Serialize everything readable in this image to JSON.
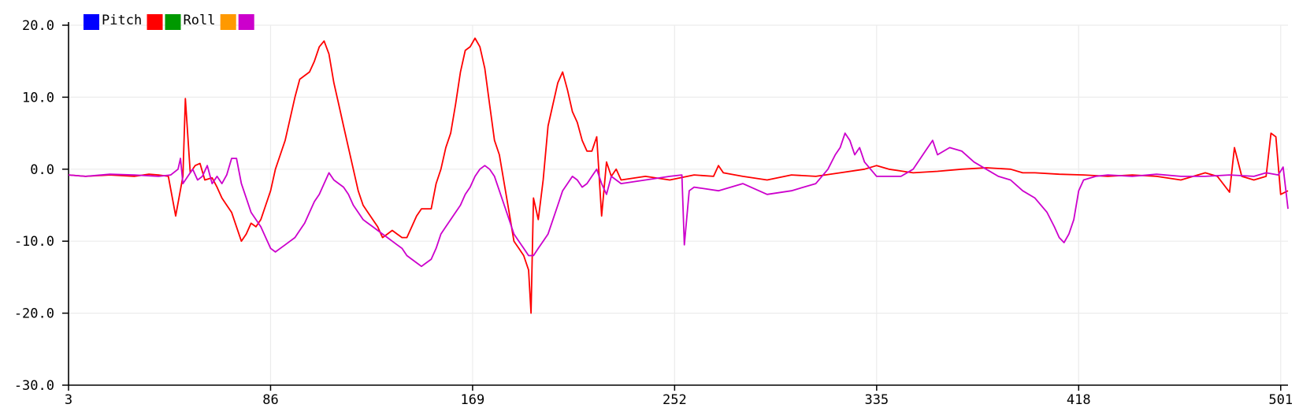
{
  "chart_data": {
    "type": "line",
    "title": "",
    "xlabel": "",
    "ylabel": "",
    "xlim": [
      3,
      504
    ],
    "ylim": [
      -30,
      20
    ],
    "grid": true,
    "legend_position": "top-left",
    "x_ticks": [
      3,
      86,
      169,
      252,
      335,
      418,
      501
    ],
    "x_tick_labels": [
      "3",
      "86",
      "169",
      "252",
      "335",
      "418",
      "501"
    ],
    "y_ticks": [
      20,
      10,
      0,
      -10,
      -20,
      -30
    ],
    "y_tick_labels": [
      "20.0",
      "10.0",
      "0.0",
      "-10.0",
      "-20.0",
      "-30.0"
    ],
    "legend": [
      {
        "color": "#0000ff",
        "label": "Pitch"
      },
      {
        "color": "#ff0000",
        "label": ""
      },
      {
        "color": "#009900",
        "label": "Roll"
      },
      {
        "color": "#ff9900",
        "label": ""
      },
      {
        "color": "#cc00cc",
        "label": ""
      }
    ],
    "series": [
      {
        "color": "#ff0000",
        "points": [
          [
            3,
            -0.8
          ],
          [
            10,
            -1
          ],
          [
            20,
            -0.8
          ],
          [
            30,
            -1
          ],
          [
            36,
            -0.7
          ],
          [
            40,
            -0.8
          ],
          [
            44,
            -1
          ],
          [
            47,
            -6.5
          ],
          [
            50,
            -1
          ],
          [
            51,
            9.8
          ],
          [
            53,
            -0.5
          ],
          [
            55,
            0.5
          ],
          [
            57,
            0.8
          ],
          [
            59,
            -1.5
          ],
          [
            62,
            -1.2
          ],
          [
            64,
            -2.5
          ],
          [
            66,
            -4
          ],
          [
            68,
            -5
          ],
          [
            70,
            -6
          ],
          [
            72,
            -8
          ],
          [
            74,
            -10
          ],
          [
            76,
            -9
          ],
          [
            78,
            -7.5
          ],
          [
            80,
            -8
          ],
          [
            82,
            -7
          ],
          [
            84,
            -5
          ],
          [
            86,
            -3
          ],
          [
            88,
            0
          ],
          [
            90,
            2
          ],
          [
            92,
            4
          ],
          [
            94,
            7
          ],
          [
            96,
            10
          ],
          [
            98,
            12.5
          ],
          [
            100,
            13
          ],
          [
            102,
            13.5
          ],
          [
            104,
            15
          ],
          [
            106,
            17
          ],
          [
            108,
            17.8
          ],
          [
            110,
            16
          ],
          [
            112,
            12
          ],
          [
            114,
            9
          ],
          [
            116,
            6
          ],
          [
            118,
            3
          ],
          [
            120,
            0
          ],
          [
            122,
            -3
          ],
          [
            124,
            -5
          ],
          [
            126,
            -6
          ],
          [
            128,
            -7
          ],
          [
            130,
            -8
          ],
          [
            132,
            -9.5
          ],
          [
            134,
            -9
          ],
          [
            136,
            -8.5
          ],
          [
            138,
            -9
          ],
          [
            140,
            -9.5
          ],
          [
            142,
            -9.5
          ],
          [
            144,
            -8
          ],
          [
            146,
            -6.5
          ],
          [
            148,
            -5.5
          ],
          [
            150,
            -5.5
          ],
          [
            152,
            -5.5
          ],
          [
            154,
            -2
          ],
          [
            156,
            0
          ],
          [
            158,
            3
          ],
          [
            160,
            5
          ],
          [
            162,
            9
          ],
          [
            164,
            13.5
          ],
          [
            166,
            16.5
          ],
          [
            168,
            17
          ],
          [
            170,
            18.2
          ],
          [
            172,
            17
          ],
          [
            174,
            14
          ],
          [
            176,
            9
          ],
          [
            178,
            4
          ],
          [
            180,
            2
          ],
          [
            182,
            -2
          ],
          [
            184,
            -6
          ],
          [
            186,
            -10
          ],
          [
            188,
            -11
          ],
          [
            190,
            -12
          ],
          [
            192,
            -14
          ],
          [
            193,
            -20
          ],
          [
            194,
            -4
          ],
          [
            196,
            -7
          ],
          [
            198,
            -1.5
          ],
          [
            200,
            6
          ],
          [
            202,
            9
          ],
          [
            204,
            12
          ],
          [
            206,
            13.5
          ],
          [
            208,
            11
          ],
          [
            210,
            8
          ],
          [
            212,
            6.5
          ],
          [
            214,
            4
          ],
          [
            216,
            2.5
          ],
          [
            218,
            2.5
          ],
          [
            220,
            4.5
          ],
          [
            222,
            -6.5
          ],
          [
            224,
            1
          ],
          [
            226,
            -1
          ],
          [
            228,
            0
          ],
          [
            230,
            -1.5
          ],
          [
            240,
            -1
          ],
          [
            250,
            -1.5
          ],
          [
            260,
            -0.8
          ],
          [
            268,
            -1
          ],
          [
            270,
            0.5
          ],
          [
            272,
            -0.5
          ],
          [
            280,
            -1
          ],
          [
            290,
            -1.5
          ],
          [
            300,
            -0.8
          ],
          [
            310,
            -1
          ],
          [
            320,
            -0.5
          ],
          [
            330,
            0
          ],
          [
            335,
            0.5
          ],
          [
            340,
            0
          ],
          [
            350,
            -0.5
          ],
          [
            360,
            -0.3
          ],
          [
            370,
            0
          ],
          [
            380,
            0.2
          ],
          [
            390,
            0
          ],
          [
            395,
            -0.5
          ],
          [
            400,
            -0.5
          ],
          [
            410,
            -0.7
          ],
          [
            420,
            -0.8
          ],
          [
            430,
            -1
          ],
          [
            440,
            -0.8
          ],
          [
            450,
            -1
          ],
          [
            460,
            -1.5
          ],
          [
            470,
            -0.5
          ],
          [
            475,
            -1
          ],
          [
            480,
            -3.2
          ],
          [
            482,
            3
          ],
          [
            485,
            -1
          ],
          [
            490,
            -1.5
          ],
          [
            495,
            -1
          ],
          [
            497,
            5
          ],
          [
            499,
            4.5
          ],
          [
            501,
            -3.5
          ],
          [
            504,
            -3
          ]
        ]
      },
      {
        "color": "#cc00cc",
        "points": [
          [
            3,
            -0.8
          ],
          [
            10,
            -1
          ],
          [
            20,
            -0.7
          ],
          [
            30,
            -0.8
          ],
          [
            40,
            -1
          ],
          [
            45,
            -0.8
          ],
          [
            48,
            0
          ],
          [
            49,
            1.5
          ],
          [
            50,
            -2
          ],
          [
            52,
            -1
          ],
          [
            54,
            0
          ],
          [
            56,
            -1.5
          ],
          [
            58,
            -1
          ],
          [
            60,
            0.5
          ],
          [
            62,
            -2
          ],
          [
            64,
            -1
          ],
          [
            66,
            -2
          ],
          [
            68,
            -0.8
          ],
          [
            70,
            1.5
          ],
          [
            72,
            1.5
          ],
          [
            74,
            -2
          ],
          [
            76,
            -4
          ],
          [
            78,
            -6
          ],
          [
            80,
            -7
          ],
          [
            82,
            -8
          ],
          [
            84,
            -9.5
          ],
          [
            86,
            -11
          ],
          [
            88,
            -11.5
          ],
          [
            90,
            -11
          ],
          [
            92,
            -10.5
          ],
          [
            94,
            -10
          ],
          [
            96,
            -9.5
          ],
          [
            98,
            -8.5
          ],
          [
            100,
            -7.5
          ],
          [
            102,
            -6
          ],
          [
            104,
            -4.5
          ],
          [
            106,
            -3.5
          ],
          [
            108,
            -2
          ],
          [
            110,
            -0.5
          ],
          [
            112,
            -1.5
          ],
          [
            114,
            -2
          ],
          [
            116,
            -2.5
          ],
          [
            118,
            -3.5
          ],
          [
            120,
            -5
          ],
          [
            122,
            -6
          ],
          [
            124,
            -7
          ],
          [
            126,
            -7.5
          ],
          [
            128,
            -8
          ],
          [
            130,
            -8.5
          ],
          [
            132,
            -9
          ],
          [
            134,
            -9.5
          ],
          [
            136,
            -10
          ],
          [
            138,
            -10.5
          ],
          [
            140,
            -11
          ],
          [
            142,
            -12
          ],
          [
            144,
            -12.5
          ],
          [
            146,
            -13
          ],
          [
            148,
            -13.5
          ],
          [
            150,
            -13
          ],
          [
            152,
            -12.5
          ],
          [
            154,
            -11
          ],
          [
            156,
            -9
          ],
          [
            158,
            -8
          ],
          [
            160,
            -7
          ],
          [
            162,
            -6
          ],
          [
            164,
            -5
          ],
          [
            166,
            -3.5
          ],
          [
            168,
            -2.5
          ],
          [
            170,
            -1
          ],
          [
            172,
            0
          ],
          [
            174,
            0.5
          ],
          [
            176,
            0
          ],
          [
            178,
            -1
          ],
          [
            180,
            -3
          ],
          [
            182,
            -5
          ],
          [
            184,
            -7
          ],
          [
            186,
            -9
          ],
          [
            188,
            -10
          ],
          [
            190,
            -11
          ],
          [
            192,
            -12
          ],
          [
            194,
            -12
          ],
          [
            196,
            -11
          ],
          [
            198,
            -10
          ],
          [
            200,
            -9
          ],
          [
            202,
            -7
          ],
          [
            204,
            -5
          ],
          [
            206,
            -3
          ],
          [
            208,
            -2
          ],
          [
            210,
            -1
          ],
          [
            212,
            -1.5
          ],
          [
            214,
            -2.5
          ],
          [
            216,
            -2
          ],
          [
            218,
            -1
          ],
          [
            220,
            0
          ],
          [
            222,
            -2
          ],
          [
            224,
            -3.5
          ],
          [
            226,
            -1
          ],
          [
            230,
            -2
          ],
          [
            240,
            -1.5
          ],
          [
            250,
            -1
          ],
          [
            255,
            -0.8
          ],
          [
            256,
            -10.5
          ],
          [
            258,
            -3
          ],
          [
            260,
            -2.5
          ],
          [
            270,
            -3
          ],
          [
            280,
            -2
          ],
          [
            290,
            -3.5
          ],
          [
            300,
            -3
          ],
          [
            310,
            -2
          ],
          [
            315,
            0
          ],
          [
            318,
            2
          ],
          [
            320,
            3
          ],
          [
            322,
            5
          ],
          [
            324,
            4
          ],
          [
            326,
            2
          ],
          [
            328,
            3
          ],
          [
            330,
            1
          ],
          [
            335,
            -1
          ],
          [
            340,
            -1
          ],
          [
            345,
            -1
          ],
          [
            350,
            0
          ],
          [
            355,
            2.5
          ],
          [
            358,
            4
          ],
          [
            360,
            2
          ],
          [
            365,
            3
          ],
          [
            370,
            2.5
          ],
          [
            375,
            1
          ],
          [
            380,
            0
          ],
          [
            385,
            -1
          ],
          [
            390,
            -1.5
          ],
          [
            395,
            -3
          ],
          [
            400,
            -4
          ],
          [
            405,
            -6
          ],
          [
            408,
            -8
          ],
          [
            410,
            -9.5
          ],
          [
            412,
            -10.2
          ],
          [
            414,
            -9
          ],
          [
            416,
            -7
          ],
          [
            418,
            -3
          ],
          [
            420,
            -1.5
          ],
          [
            425,
            -1
          ],
          [
            430,
            -0.8
          ],
          [
            440,
            -1
          ],
          [
            450,
            -0.7
          ],
          [
            460,
            -1
          ],
          [
            470,
            -1
          ],
          [
            480,
            -0.8
          ],
          [
            490,
            -1
          ],
          [
            495,
            -0.5
          ],
          [
            500,
            -0.8
          ],
          [
            502,
            0.3
          ],
          [
            504,
            -5.5
          ]
        ]
      }
    ]
  }
}
